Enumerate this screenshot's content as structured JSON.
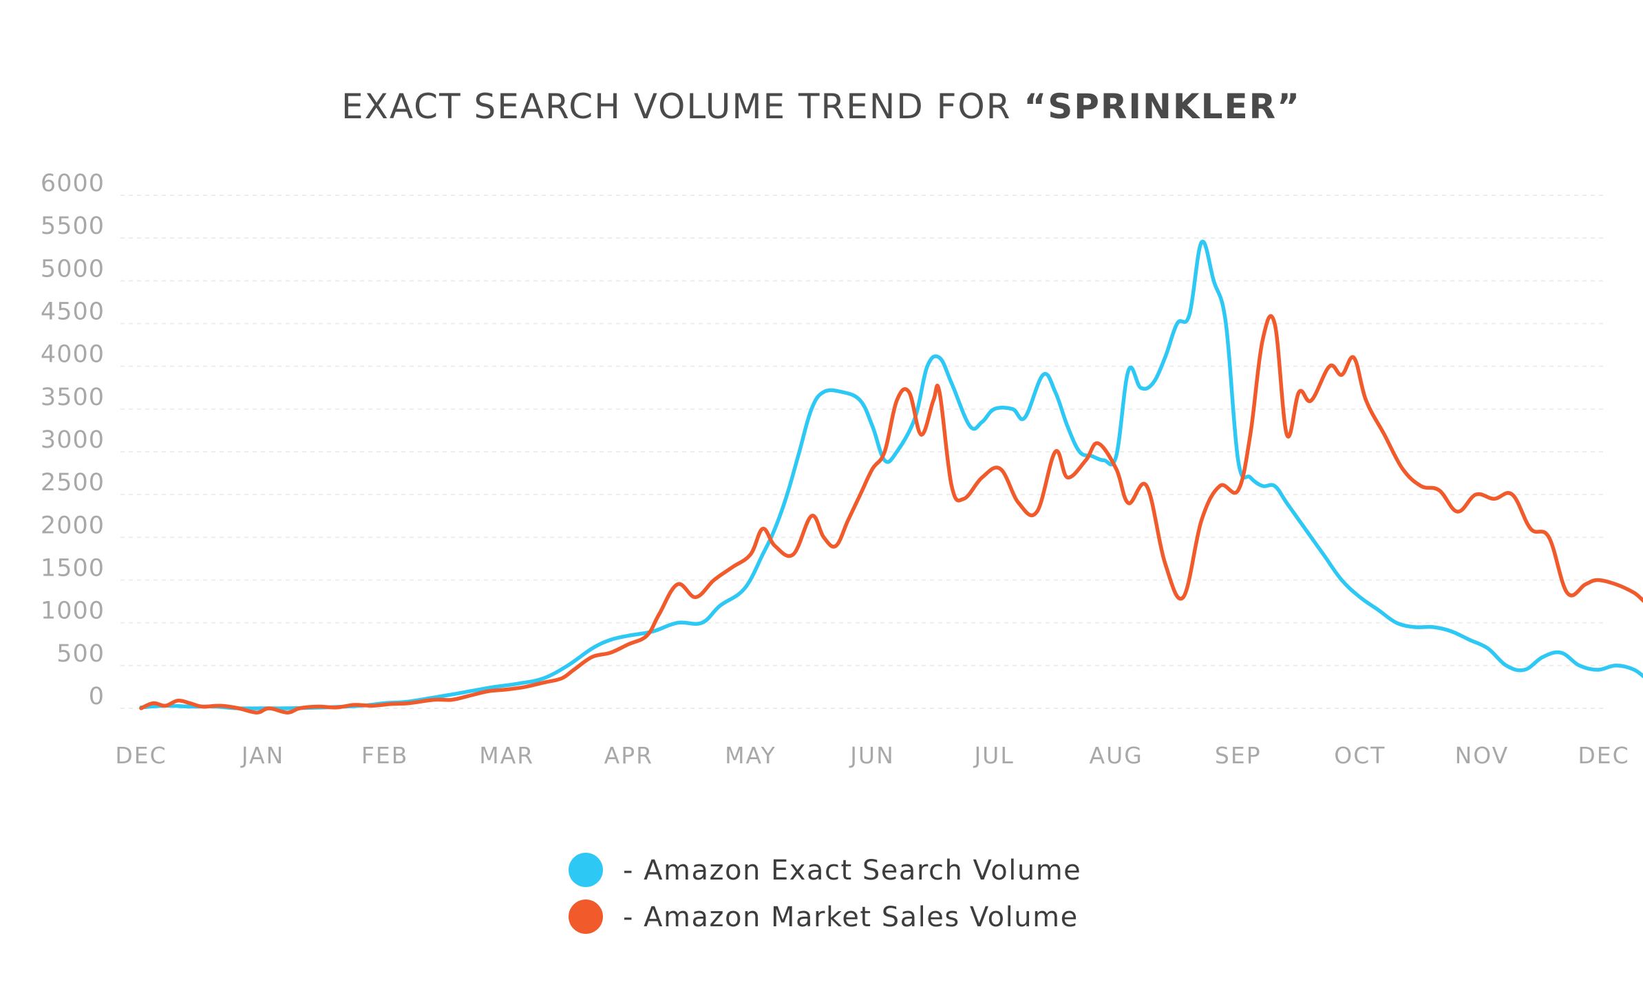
{
  "chart_data": {
    "type": "line",
    "title_prefix": "EXACT SEARCH VOLUME TREND FOR ",
    "title_emphasis": "“SPRINKLER”",
    "xlabel": "",
    "ylabel": "",
    "ylim": [
      0,
      6000
    ],
    "y_ticks": [
      0,
      500,
      1000,
      1500,
      2000,
      2500,
      3000,
      3500,
      4000,
      4500,
      5000,
      5500,
      6000
    ],
    "x_tick_labels": [
      "DEC",
      "JAN",
      "FEB",
      "MAR",
      "APR",
      "MAY",
      "JUN",
      "JUL",
      "AUG",
      "SEP",
      "OCT",
      "NOV",
      "DEC"
    ],
    "grid": true,
    "legend_position": "bottom-center",
    "legend": [
      {
        "label": "- Amazon Exact Search Volume",
        "color": "#2ec8f5"
      },
      {
        "label": "- Amazon Market Sales Volume",
        "color": "#f15a2b"
      }
    ],
    "series": [
      {
        "name": "Amazon Exact Search Volume",
        "color": "#2ec8f5",
        "points": [
          [
            0.0,
            10
          ],
          [
            0.2,
            30
          ],
          [
            0.4,
            20
          ],
          [
            0.6,
            20
          ],
          [
            0.8,
            0
          ],
          [
            1.0,
            0
          ],
          [
            1.2,
            0
          ],
          [
            1.5,
            10
          ],
          [
            1.8,
            30
          ],
          [
            2.0,
            60
          ],
          [
            2.2,
            80
          ],
          [
            2.5,
            150
          ],
          [
            2.7,
            200
          ],
          [
            2.9,
            250
          ],
          [
            3.1,
            290
          ],
          [
            3.3,
            350
          ],
          [
            3.5,
            500
          ],
          [
            3.7,
            700
          ],
          [
            3.85,
            800
          ],
          [
            4.0,
            850
          ],
          [
            4.2,
            900
          ],
          [
            4.4,
            1000
          ],
          [
            4.6,
            1000
          ],
          [
            4.75,
            1200
          ],
          [
            4.95,
            1400
          ],
          [
            5.1,
            1800
          ],
          [
            5.2,
            2100
          ],
          [
            5.3,
            2500
          ],
          [
            5.4,
            3000
          ],
          [
            5.5,
            3500
          ],
          [
            5.6,
            3700
          ],
          [
            5.75,
            3700
          ],
          [
            5.9,
            3600
          ],
          [
            6.0,
            3300
          ],
          [
            6.1,
            2900
          ],
          [
            6.2,
            3000
          ],
          [
            6.35,
            3400
          ],
          [
            6.45,
            4000
          ],
          [
            6.55,
            4100
          ],
          [
            6.65,
            3800
          ],
          [
            6.8,
            3300
          ],
          [
            6.9,
            3350
          ],
          [
            7.0,
            3500
          ],
          [
            7.15,
            3500
          ],
          [
            7.25,
            3400
          ],
          [
            7.4,
            3900
          ],
          [
            7.5,
            3700
          ],
          [
            7.6,
            3300
          ],
          [
            7.7,
            3000
          ],
          [
            7.8,
            2950
          ],
          [
            7.9,
            2900
          ],
          [
            8.0,
            2950
          ],
          [
            8.1,
            3950
          ],
          [
            8.2,
            3750
          ],
          [
            8.3,
            3800
          ],
          [
            8.4,
            4100
          ],
          [
            8.5,
            4500
          ],
          [
            8.6,
            4600
          ],
          [
            8.7,
            5450
          ],
          [
            8.8,
            5000
          ],
          [
            8.9,
            4500
          ],
          [
            9.0,
            2900
          ],
          [
            9.1,
            2700
          ],
          [
            9.2,
            2600
          ],
          [
            9.3,
            2600
          ],
          [
            9.4,
            2400
          ],
          [
            9.55,
            2100
          ],
          [
            9.7,
            1800
          ],
          [
            9.85,
            1500
          ],
          [
            10.0,
            1300
          ],
          [
            10.15,
            1150
          ],
          [
            10.3,
            1000
          ],
          [
            10.45,
            950
          ],
          [
            10.6,
            950
          ],
          [
            10.75,
            900
          ],
          [
            10.9,
            800
          ],
          [
            11.05,
            700
          ],
          [
            11.2,
            500
          ],
          [
            11.35,
            450
          ],
          [
            11.5,
            600
          ],
          [
            11.65,
            650
          ],
          [
            11.8,
            500
          ],
          [
            11.95,
            450
          ],
          [
            12.1,
            500
          ],
          [
            12.25,
            450
          ],
          [
            12.4,
            300
          ],
          [
            12.55,
            250
          ],
          [
            12.7,
            250
          ],
          [
            12.85,
            250
          ],
          [
            13.0,
            200
          ],
          [
            13.2,
            150
          ],
          [
            13.4,
            150
          ],
          [
            13.6,
            150
          ],
          [
            13.8,
            150
          ],
          [
            14.0,
            150
          ],
          [
            14.2,
            50
          ],
          [
            14.4,
            50
          ],
          [
            14.6,
            50
          ],
          [
            14.8,
            50
          ],
          [
            15.0,
            50
          ]
        ]
      },
      {
        "name": "Amazon Market Sales Volume",
        "color": "#f15a2b",
        "points": [
          [
            0.0,
            0
          ],
          [
            0.1,
            60
          ],
          [
            0.2,
            30
          ],
          [
            0.3,
            90
          ],
          [
            0.4,
            60
          ],
          [
            0.5,
            20
          ],
          [
            0.65,
            30
          ],
          [
            0.8,
            0
          ],
          [
            0.95,
            -50
          ],
          [
            1.05,
            0
          ],
          [
            1.2,
            -50
          ],
          [
            1.3,
            0
          ],
          [
            1.45,
            20
          ],
          [
            1.6,
            10
          ],
          [
            1.75,
            40
          ],
          [
            1.9,
            30
          ],
          [
            2.05,
            50
          ],
          [
            2.2,
            60
          ],
          [
            2.4,
            100
          ],
          [
            2.55,
            100
          ],
          [
            2.7,
            150
          ],
          [
            2.85,
            200
          ],
          [
            3.0,
            220
          ],
          [
            3.15,
            250
          ],
          [
            3.3,
            300
          ],
          [
            3.45,
            350
          ],
          [
            3.55,
            450
          ],
          [
            3.7,
            600
          ],
          [
            3.85,
            650
          ],
          [
            4.0,
            750
          ],
          [
            4.15,
            850
          ],
          [
            4.25,
            1100
          ],
          [
            4.4,
            1450
          ],
          [
            4.55,
            1300
          ],
          [
            4.7,
            1500
          ],
          [
            4.85,
            1650
          ],
          [
            5.0,
            1800
          ],
          [
            5.1,
            2100
          ],
          [
            5.2,
            1900
          ],
          [
            5.35,
            1800
          ],
          [
            5.5,
            2250
          ],
          [
            5.6,
            2000
          ],
          [
            5.7,
            1900
          ],
          [
            5.8,
            2200
          ],
          [
            5.9,
            2500
          ],
          [
            6.0,
            2800
          ],
          [
            6.1,
            3000
          ],
          [
            6.2,
            3600
          ],
          [
            6.3,
            3700
          ],
          [
            6.4,
            3200
          ],
          [
            6.5,
            3600
          ],
          [
            6.55,
            3700
          ],
          [
            6.65,
            2600
          ],
          [
            6.75,
            2450
          ],
          [
            6.9,
            2700
          ],
          [
            7.05,
            2800
          ],
          [
            7.2,
            2400
          ],
          [
            7.35,
            2300
          ],
          [
            7.5,
            3000
          ],
          [
            7.6,
            2700
          ],
          [
            7.75,
            2900
          ],
          [
            7.85,
            3100
          ],
          [
            8.0,
            2800
          ],
          [
            8.1,
            2400
          ],
          [
            8.25,
            2600
          ],
          [
            8.4,
            1700
          ],
          [
            8.55,
            1300
          ],
          [
            8.7,
            2200
          ],
          [
            8.85,
            2600
          ],
          [
            9.0,
            2550
          ],
          [
            9.1,
            3200
          ],
          [
            9.2,
            4300
          ],
          [
            9.3,
            4500
          ],
          [
            9.4,
            3200
          ],
          [
            9.5,
            3700
          ],
          [
            9.6,
            3600
          ],
          [
            9.75,
            4000
          ],
          [
            9.85,
            3900
          ],
          [
            9.95,
            4100
          ],
          [
            10.05,
            3600
          ],
          [
            10.2,
            3200
          ],
          [
            10.35,
            2800
          ],
          [
            10.5,
            2600
          ],
          [
            10.65,
            2550
          ],
          [
            10.8,
            2300
          ],
          [
            10.95,
            2500
          ],
          [
            11.1,
            2450
          ],
          [
            11.25,
            2500
          ],
          [
            11.4,
            2100
          ],
          [
            11.55,
            2000
          ],
          [
            11.7,
            1350
          ],
          [
            11.85,
            1450
          ],
          [
            11.95,
            1500
          ],
          [
            12.1,
            1450
          ],
          [
            12.25,
            1350
          ],
          [
            12.4,
            1200
          ],
          [
            12.55,
            1350
          ],
          [
            12.7,
            1200
          ],
          [
            12.85,
            900
          ],
          [
            13.0,
            600
          ],
          [
            13.15,
            750
          ],
          [
            13.25,
            900
          ],
          [
            13.35,
            700
          ],
          [
            13.45,
            800
          ],
          [
            13.55,
            500
          ],
          [
            13.65,
            550
          ],
          [
            13.8,
            300
          ],
          [
            13.95,
            250
          ],
          [
            14.1,
            200
          ],
          [
            14.3,
            150
          ],
          [
            14.5,
            100
          ],
          [
            14.7,
            50
          ],
          [
            14.85,
            50
          ],
          [
            15.0,
            50
          ]
        ]
      }
    ]
  }
}
